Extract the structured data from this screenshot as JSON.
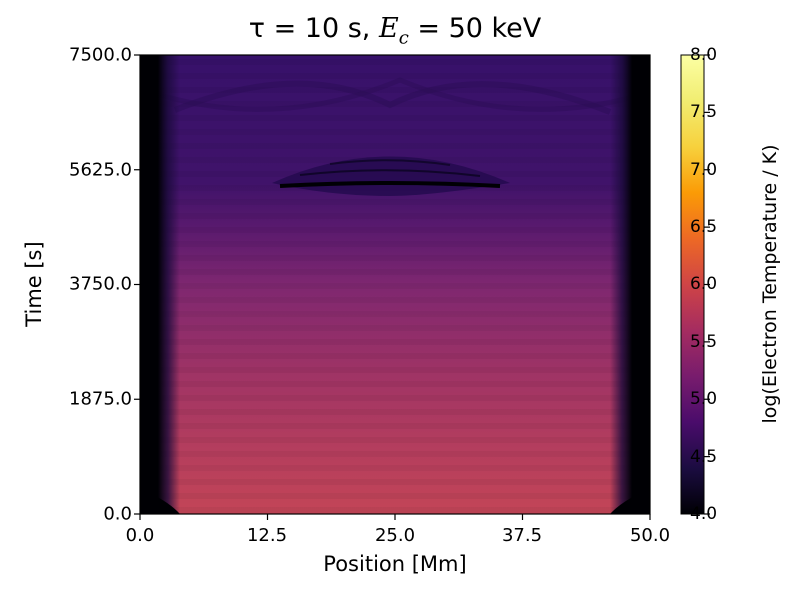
{
  "chart_data": {
    "type": "heatmap",
    "title": {
      "tau_symbol": "τ",
      "tau_value": "= 10 s, ",
      "E_symbol": "E",
      "E_sub": "c",
      "E_value": " = 50 keV"
    },
    "xlabel": "Position [Mm]",
    "ylabel": "Time [s]",
    "colorbar_label": "log(Electron Temperature / K)",
    "colormap": "inferno",
    "xlim": [
      0.0,
      50.0
    ],
    "ylim": [
      0.0,
      7500.0
    ],
    "clim": [
      4.0,
      8.0
    ],
    "x_ticks": [
      "0.0",
      "12.5",
      "25.0",
      "37.5",
      "50.0"
    ],
    "y_ticks": [
      "0.0",
      "1875.0",
      "3750.0",
      "5625.0",
      "7500.0"
    ],
    "colorbar_ticks": [
      "4.0",
      "4.5",
      "5.0",
      "5.5",
      "6.0",
      "6.5",
      "7.0",
      "7.5",
      "8.0"
    ],
    "approx_levels": [
      {
        "time": 0,
        "log_temp": 6.1
      },
      {
        "time": 1875,
        "log_temp": 5.9
      },
      {
        "time": 3750,
        "log_temp": 5.55
      },
      {
        "time": 4700,
        "log_temp": 5.1
      },
      {
        "time": 5625,
        "log_temp": 4.8
      },
      {
        "time": 7500,
        "log_temp": 4.75
      }
    ]
  }
}
